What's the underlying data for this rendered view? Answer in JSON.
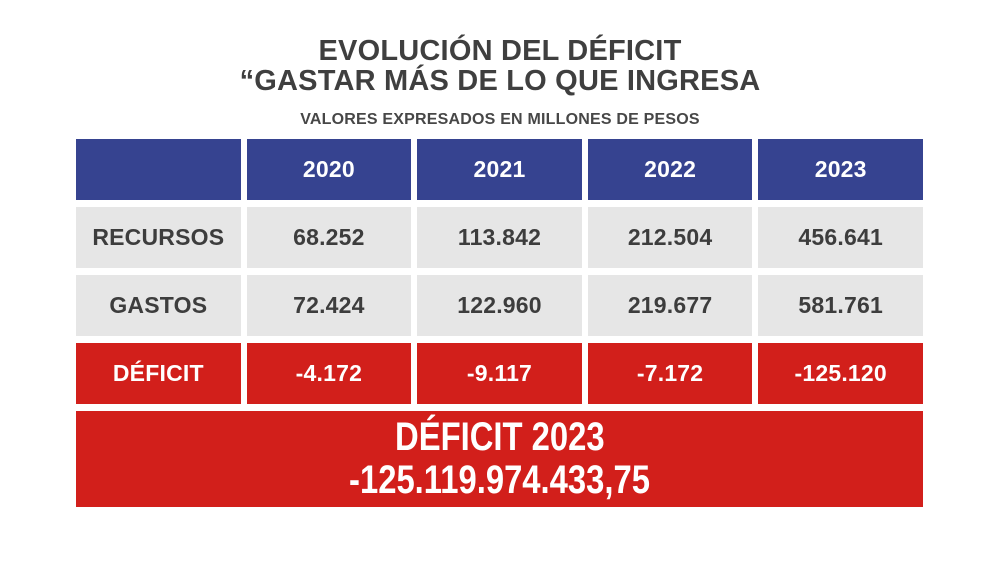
{
  "title": {
    "line1": "EVOLUCIÓN DEL DÉFICIT",
    "line2": "“GASTAR MÁS DE LO QUE INGRESA",
    "subtitle": "VALORES EXPRESADOS EN MILLONES DE PESOS"
  },
  "table": {
    "years": [
      "2020",
      "2021",
      "2022",
      "2023"
    ],
    "rows": [
      {
        "label": "RECURSOS",
        "values": [
          "68.252",
          "113.842",
          "212.504",
          "456.641"
        ]
      },
      {
        "label": "GASTOS",
        "values": [
          "72.424",
          "122.960",
          "219.677",
          "581.761"
        ]
      },
      {
        "label": "DÉFICIT",
        "values": [
          "-4.172",
          "-9.117",
          "-7.172",
          "-125.120"
        ]
      }
    ]
  },
  "banner": {
    "line1": "DÉFICIT 2023",
    "line2": "-125.119.974.433,75"
  },
  "colors": {
    "header_blue": "#364390",
    "deficit_red": "#d21f1b",
    "row_gray": "#e6e6e6",
    "text_dark": "#3d3d3d"
  },
  "chart_data": {
    "type": "table",
    "title": "EVOLUCIÓN DEL DÉFICIT “GASTAR MÁS DE LO QUE INGRESA",
    "subtitle": "VALORES EXPRESADOS EN MILLONES DE PESOS",
    "categories": [
      "2020",
      "2021",
      "2022",
      "2023"
    ],
    "series": [
      {
        "name": "RECURSOS",
        "values": [
          68252,
          113842,
          212504,
          456641
        ]
      },
      {
        "name": "GASTOS",
        "values": [
          72424,
          122960,
          219677,
          581761
        ]
      },
      {
        "name": "DÉFICIT",
        "values": [
          -4172,
          -9117,
          -7172,
          -125120
        ]
      }
    ],
    "annotation": "DÉFICIT 2023 -125.119.974.433,75",
    "units": "millones de pesos"
  }
}
